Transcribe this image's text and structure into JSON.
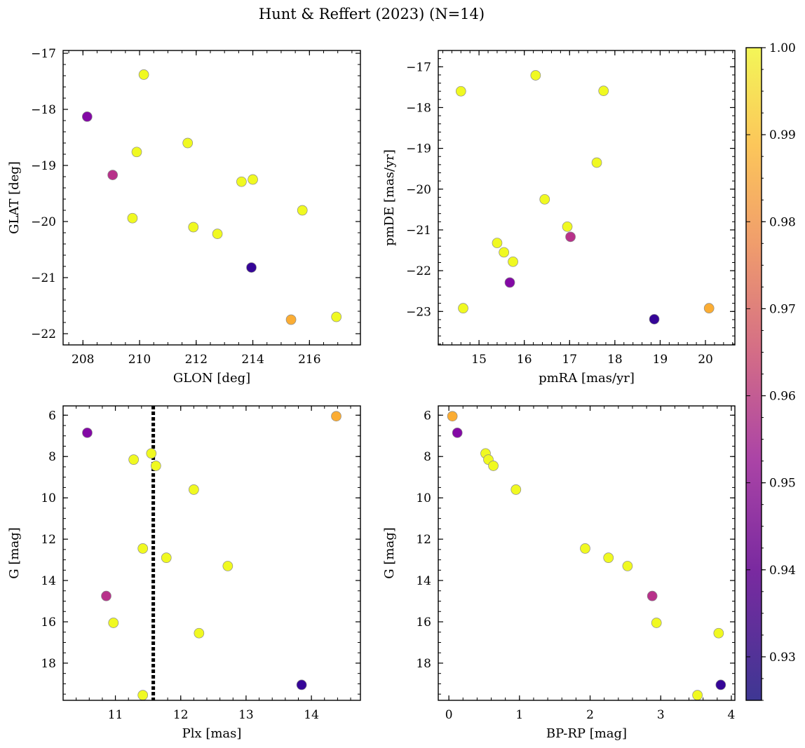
{
  "figure": {
    "title": "Hunt & Reffert (2023) (N=14)"
  },
  "colorbar": {
    "min": 0.925,
    "max": 1.0,
    "ticks": [
      0.93,
      0.94,
      0.95,
      0.96,
      0.97,
      0.98,
      0.99,
      1.0
    ],
    "tick_labels": [
      "0.93",
      "0.94",
      "0.95",
      "0.96",
      "0.97",
      "0.98",
      "0.99",
      "1.00"
    ],
    "colormap": "plasma"
  },
  "chart_data": [
    {
      "type": "scatter",
      "xlabel": "GLON [deg]",
      "ylabel": "GLAT [deg]",
      "xlim": [
        207.3,
        217.8
      ],
      "ylim": [
        -22.2,
        -16.95
      ],
      "xticks": [
        208,
        210,
        212,
        214,
        216
      ],
      "xtick_labels": [
        "208",
        "210",
        "212",
        "214",
        "216"
      ],
      "yticks": [
        -22,
        -21,
        -20,
        -19,
        -18,
        -17
      ],
      "ytick_labels": [
        "−22",
        "−21",
        "−20",
        "−19",
        "−18",
        "−17"
      ],
      "points": [
        {
          "x": 208.15,
          "y": -18.13,
          "c": 0.94
        },
        {
          "x": 210.15,
          "y": -17.38,
          "c": 1.0
        },
        {
          "x": 209.05,
          "y": -19.17,
          "c": 0.953
        },
        {
          "x": 209.9,
          "y": -18.76,
          "c": 1.0
        },
        {
          "x": 211.7,
          "y": -18.6,
          "c": 1.0
        },
        {
          "x": 209.75,
          "y": -19.94,
          "c": 1.0
        },
        {
          "x": 211.9,
          "y": -20.1,
          "c": 1.0
        },
        {
          "x": 212.75,
          "y": -20.22,
          "c": 1.0
        },
        {
          "x": 213.6,
          "y": -19.29,
          "c": 1.0
        },
        {
          "x": 214.0,
          "y": -19.25,
          "c": 1.0
        },
        {
          "x": 215.75,
          "y": -19.8,
          "c": 1.0
        },
        {
          "x": 213.95,
          "y": -20.82,
          "c": 0.925
        },
        {
          "x": 215.35,
          "y": -21.75,
          "c": 0.985
        },
        {
          "x": 216.95,
          "y": -21.7,
          "c": 1.0
        }
      ]
    },
    {
      "type": "scatter",
      "xlabel": "pmRA [mas/yr]",
      "ylabel": "pmDE [mas/yr]",
      "xlim": [
        14.1,
        20.65
      ],
      "ylim": [
        -23.82,
        -16.6
      ],
      "xticks": [
        15,
        16,
        17,
        18,
        19,
        20
      ],
      "xtick_labels": [
        "15",
        "16",
        "17",
        "18",
        "19",
        "20"
      ],
      "yticks": [
        -23,
        -22,
        -21,
        -20,
        -19,
        -18,
        -17
      ],
      "ytick_labels": [
        "−23",
        "−22",
        "−21",
        "−20",
        "−19",
        "−18",
        "−17"
      ],
      "points": [
        {
          "x": 14.6,
          "y": -17.6,
          "c": 1.0
        },
        {
          "x": 16.25,
          "y": -17.21,
          "c": 1.0
        },
        {
          "x": 17.75,
          "y": -17.59,
          "c": 1.0
        },
        {
          "x": 17.6,
          "y": -19.35,
          "c": 1.0
        },
        {
          "x": 16.45,
          "y": -20.25,
          "c": 1.0
        },
        {
          "x": 16.95,
          "y": -20.92,
          "c": 1.0
        },
        {
          "x": 15.4,
          "y": -21.32,
          "c": 1.0
        },
        {
          "x": 15.55,
          "y": -21.55,
          "c": 1.0
        },
        {
          "x": 15.75,
          "y": -21.78,
          "c": 1.0
        },
        {
          "x": 17.02,
          "y": -21.17,
          "c": 0.953
        },
        {
          "x": 15.68,
          "y": -22.29,
          "c": 0.94
        },
        {
          "x": 14.65,
          "y": -22.92,
          "c": 1.0
        },
        {
          "x": 18.87,
          "y": -23.19,
          "c": 0.925
        },
        {
          "x": 20.08,
          "y": -22.92,
          "c": 0.985
        }
      ]
    },
    {
      "type": "scatter",
      "xlabel": "Plx [mas]",
      "ylabel": "G [mag]",
      "xlim": [
        10.2,
        14.75
      ],
      "ylim": [
        19.8,
        5.55
      ],
      "xticks": [
        11,
        12,
        13,
        14
      ],
      "xtick_labels": [
        "11",
        "12",
        "13",
        "14"
      ],
      "yticks": [
        6,
        8,
        10,
        12,
        14,
        16,
        18
      ],
      "ytick_labels": [
        "6",
        "8",
        "10",
        "12",
        "14",
        "16",
        "18"
      ],
      "vline": 11.58,
      "points": [
        {
          "x": 10.57,
          "y": 6.85,
          "c": 0.94
        },
        {
          "x": 14.38,
          "y": 6.05,
          "c": 0.985
        },
        {
          "x": 11.28,
          "y": 8.15,
          "c": 1.0
        },
        {
          "x": 11.55,
          "y": 7.85,
          "c": 1.0
        },
        {
          "x": 11.62,
          "y": 8.45,
          "c": 1.0
        },
        {
          "x": 12.2,
          "y": 9.6,
          "c": 1.0
        },
        {
          "x": 11.42,
          "y": 12.45,
          "c": 1.0
        },
        {
          "x": 11.78,
          "y": 12.9,
          "c": 1.0
        },
        {
          "x": 12.72,
          "y": 13.3,
          "c": 1.0
        },
        {
          "x": 10.86,
          "y": 14.75,
          "c": 0.953
        },
        {
          "x": 10.97,
          "y": 16.05,
          "c": 1.0
        },
        {
          "x": 12.28,
          "y": 16.55,
          "c": 1.0
        },
        {
          "x": 13.85,
          "y": 19.05,
          "c": 0.925
        },
        {
          "x": 11.42,
          "y": 19.55,
          "c": 1.0
        }
      ]
    },
    {
      "type": "scatter",
      "xlabel": "BP-RP [mag]",
      "ylabel": "G [mag]",
      "xlim": [
        -0.15,
        4.05
      ],
      "ylim": [
        19.8,
        5.55
      ],
      "xticks": [
        0,
        1,
        2,
        3,
        4
      ],
      "xtick_labels": [
        "0",
        "1",
        "2",
        "3",
        "4"
      ],
      "yticks": [
        6,
        8,
        10,
        12,
        14,
        16,
        18
      ],
      "ytick_labels": [
        "6",
        "8",
        "10",
        "12",
        "14",
        "16",
        "18"
      ],
      "points": [
        {
          "x": 0.05,
          "y": 6.05,
          "c": 0.985
        },
        {
          "x": 0.12,
          "y": 6.85,
          "c": 0.94
        },
        {
          "x": 0.52,
          "y": 7.85,
          "c": 1.0
        },
        {
          "x": 0.56,
          "y": 8.15,
          "c": 1.0
        },
        {
          "x": 0.63,
          "y": 8.45,
          "c": 1.0
        },
        {
          "x": 0.95,
          "y": 9.6,
          "c": 1.0
        },
        {
          "x": 1.93,
          "y": 12.45,
          "c": 1.0
        },
        {
          "x": 2.26,
          "y": 12.9,
          "c": 1.0
        },
        {
          "x": 2.53,
          "y": 13.3,
          "c": 1.0
        },
        {
          "x": 2.88,
          "y": 14.75,
          "c": 0.953
        },
        {
          "x": 2.94,
          "y": 16.05,
          "c": 1.0
        },
        {
          "x": 3.82,
          "y": 16.55,
          "c": 1.0
        },
        {
          "x": 3.85,
          "y": 19.05,
          "c": 0.925
        },
        {
          "x": 3.52,
          "y": 19.55,
          "c": 1.0
        }
      ]
    }
  ]
}
